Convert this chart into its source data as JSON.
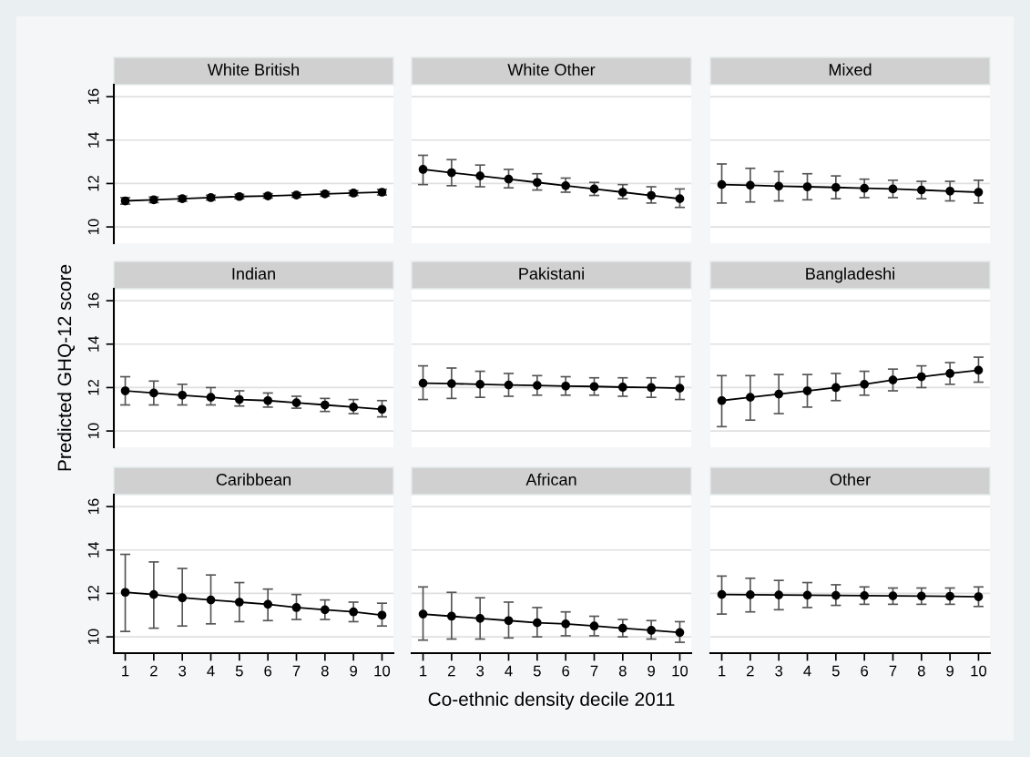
{
  "chart_data": [
    {
      "type": "line",
      "title": "White British",
      "x": [
        1,
        2,
        3,
        4,
        5,
        6,
        7,
        8,
        9,
        10
      ],
      "xlim": [
        0.6,
        10.4
      ],
      "xticks": [
        1,
        2,
        3,
        4,
        5,
        6,
        7,
        8,
        9,
        10
      ],
      "ylim": [
        9.25,
        16.55
      ],
      "yticks": [
        10,
        12,
        14,
        16
      ],
      "grid": "y",
      "marker": "circle",
      "tick_labels": "y",
      "series": [
        {
          "color": "#000000",
          "values": [
            11.2,
            11.25,
            11.3,
            11.35,
            11.4,
            11.43,
            11.47,
            11.52,
            11.56,
            11.6
          ],
          "errors": [
            [
              11.05,
              11.35
            ],
            [
              11.12,
              11.38
            ],
            [
              11.18,
              11.42
            ],
            [
              11.24,
              11.46
            ],
            [
              11.3,
              11.5
            ],
            [
              11.33,
              11.53
            ],
            [
              11.37,
              11.57
            ],
            [
              11.42,
              11.62
            ],
            [
              11.45,
              11.67
            ],
            [
              11.47,
              11.73
            ]
          ]
        }
      ]
    },
    {
      "type": "line",
      "title": "White Other",
      "x": [
        1,
        2,
        3,
        4,
        5,
        6,
        7,
        8,
        9,
        10
      ],
      "xlim": [
        0.6,
        10.4
      ],
      "xticks": [
        1,
        2,
        3,
        4,
        5,
        6,
        7,
        8,
        9,
        10
      ],
      "ylim": [
        9.25,
        16.55
      ],
      "yticks": [
        10,
        12,
        14,
        16
      ],
      "grid": "y",
      "marker": "circle",
      "tick_labels": false,
      "series": [
        {
          "color": "#000000",
          "values": [
            12.65,
            12.5,
            12.35,
            12.2,
            12.05,
            11.9,
            11.75,
            11.6,
            11.45,
            11.3
          ],
          "errors": [
            [
              11.95,
              13.3
            ],
            [
              11.9,
              13.1
            ],
            [
              11.85,
              12.85
            ],
            [
              11.8,
              12.65
            ],
            [
              11.7,
              12.45
            ],
            [
              11.6,
              12.25
            ],
            [
              11.45,
              12.05
            ],
            [
              11.3,
              11.95
            ],
            [
              11.1,
              11.85
            ],
            [
              10.9,
              11.75
            ]
          ]
        }
      ]
    },
    {
      "type": "line",
      "title": "Mixed",
      "x": [
        1,
        2,
        3,
        4,
        5,
        6,
        7,
        8,
        9,
        10
      ],
      "xlim": [
        0.6,
        10.4
      ],
      "xticks": [
        1,
        2,
        3,
        4,
        5,
        6,
        7,
        8,
        9,
        10
      ],
      "ylim": [
        9.25,
        16.55
      ],
      "yticks": [
        10,
        12,
        14,
        16
      ],
      "grid": "y",
      "marker": "circle",
      "tick_labels": false,
      "series": [
        {
          "color": "#000000",
          "values": [
            11.95,
            11.92,
            11.88,
            11.85,
            11.82,
            11.78,
            11.75,
            11.7,
            11.65,
            11.6
          ],
          "errors": [
            [
              11.1,
              12.9
            ],
            [
              11.15,
              12.7
            ],
            [
              11.2,
              12.55
            ],
            [
              11.25,
              12.45
            ],
            [
              11.3,
              12.35
            ],
            [
              11.35,
              12.2
            ],
            [
              11.35,
              12.15
            ],
            [
              11.3,
              12.1
            ],
            [
              11.2,
              12.1
            ],
            [
              11.1,
              12.15
            ]
          ]
        }
      ]
    },
    {
      "type": "line",
      "title": "Indian",
      "ylabel": "Predicted GHQ-12 score",
      "x": [
        1,
        2,
        3,
        4,
        5,
        6,
        7,
        8,
        9,
        10
      ],
      "xlim": [
        0.6,
        10.4
      ],
      "xticks": [
        1,
        2,
        3,
        4,
        5,
        6,
        7,
        8,
        9,
        10
      ],
      "ylim": [
        9.25,
        16.55
      ],
      "yticks": [
        10,
        12,
        14,
        16
      ],
      "grid": "y",
      "marker": "circle",
      "tick_labels": "y",
      "series": [
        {
          "color": "#000000",
          "values": [
            11.85,
            11.75,
            11.65,
            11.55,
            11.45,
            11.4,
            11.3,
            11.2,
            11.1,
            11.0
          ],
          "errors": [
            [
              11.2,
              12.5
            ],
            [
              11.2,
              12.3
            ],
            [
              11.2,
              12.15
            ],
            [
              11.2,
              12.0
            ],
            [
              11.15,
              11.85
            ],
            [
              11.1,
              11.75
            ],
            [
              11.05,
              11.6
            ],
            [
              10.9,
              11.5
            ],
            [
              10.8,
              11.45
            ],
            [
              10.65,
              11.4
            ]
          ]
        }
      ]
    },
    {
      "type": "line",
      "title": "Pakistani",
      "x": [
        1,
        2,
        3,
        4,
        5,
        6,
        7,
        8,
        9,
        10
      ],
      "xlim": [
        0.6,
        10.4
      ],
      "xticks": [
        1,
        2,
        3,
        4,
        5,
        6,
        7,
        8,
        9,
        10
      ],
      "ylim": [
        9.25,
        16.55
      ],
      "yticks": [
        10,
        12,
        14,
        16
      ],
      "grid": "y",
      "marker": "circle",
      "tick_labels": false,
      "series": [
        {
          "color": "#000000",
          "values": [
            12.2,
            12.18,
            12.15,
            12.12,
            12.1,
            12.07,
            12.05,
            12.02,
            12.0,
            11.97
          ],
          "errors": [
            [
              11.45,
              13.0
            ],
            [
              11.5,
              12.9
            ],
            [
              11.55,
              12.75
            ],
            [
              11.6,
              12.65
            ],
            [
              11.65,
              12.55
            ],
            [
              11.65,
              12.5
            ],
            [
              11.65,
              12.45
            ],
            [
              11.6,
              12.45
            ],
            [
              11.55,
              12.45
            ],
            [
              11.45,
              12.5
            ]
          ]
        }
      ]
    },
    {
      "type": "line",
      "title": "Bangladeshi",
      "x": [
        1,
        2,
        3,
        4,
        5,
        6,
        7,
        8,
        9,
        10
      ],
      "xlim": [
        0.6,
        10.4
      ],
      "xticks": [
        1,
        2,
        3,
        4,
        5,
        6,
        7,
        8,
        9,
        10
      ],
      "ylim": [
        9.25,
        16.55
      ],
      "yticks": [
        10,
        12,
        14,
        16
      ],
      "grid": "y",
      "marker": "circle",
      "tick_labels": false,
      "series": [
        {
          "color": "#000000",
          "values": [
            11.4,
            11.55,
            11.7,
            11.85,
            12.0,
            12.15,
            12.35,
            12.5,
            12.65,
            12.8
          ],
          "errors": [
            [
              10.2,
              12.55
            ],
            [
              10.5,
              12.55
            ],
            [
              10.8,
              12.6
            ],
            [
              11.1,
              12.6
            ],
            [
              11.4,
              12.65
            ],
            [
              11.65,
              12.75
            ],
            [
              11.85,
              12.85
            ],
            [
              12.0,
              13.0
            ],
            [
              12.15,
              13.15
            ],
            [
              12.25,
              13.4
            ]
          ]
        }
      ]
    },
    {
      "type": "line",
      "title": "Caribbean",
      "x": [
        1,
        2,
        3,
        4,
        5,
        6,
        7,
        8,
        9,
        10
      ],
      "xlim": [
        0.6,
        10.4
      ],
      "xticks": [
        1,
        2,
        3,
        4,
        5,
        6,
        7,
        8,
        9,
        10
      ],
      "ylim": [
        9.25,
        16.55
      ],
      "yticks": [
        10,
        12,
        14,
        16
      ],
      "grid": "y",
      "marker": "circle",
      "series": [
        {
          "color": "#000000",
          "values": [
            12.05,
            11.95,
            11.8,
            11.7,
            11.6,
            11.5,
            11.35,
            11.25,
            11.15,
            11.0
          ],
          "errors": [
            [
              10.25,
              13.8
            ],
            [
              10.4,
              13.45
            ],
            [
              10.5,
              13.15
            ],
            [
              10.6,
              12.85
            ],
            [
              10.7,
              12.5
            ],
            [
              10.75,
              12.2
            ],
            [
              10.8,
              11.95
            ],
            [
              10.8,
              11.7
            ],
            [
              10.7,
              11.6
            ],
            [
              10.5,
              11.55
            ]
          ]
        }
      ]
    },
    {
      "type": "line",
      "title": "African",
      "xlabel": "Co-ethnic density decile 2011",
      "x": [
        1,
        2,
        3,
        4,
        5,
        6,
        7,
        8,
        9,
        10
      ],
      "xlim": [
        0.6,
        10.4
      ],
      "xticks": [
        1,
        2,
        3,
        4,
        5,
        6,
        7,
        8,
        9,
        10
      ],
      "ylim": [
        9.25,
        16.55
      ],
      "yticks": [
        10,
        12,
        14,
        16
      ],
      "grid": "y",
      "marker": "circle",
      "tick_labels": "x",
      "series": [
        {
          "color": "#000000",
          "values": [
            11.05,
            10.95,
            10.85,
            10.75,
            10.65,
            10.6,
            10.5,
            10.4,
            10.3,
            10.2
          ],
          "errors": [
            [
              9.85,
              12.3
            ],
            [
              9.9,
              12.05
            ],
            [
              9.9,
              11.8
            ],
            [
              9.95,
              11.6
            ],
            [
              10.0,
              11.35
            ],
            [
              10.05,
              11.15
            ],
            [
              10.05,
              10.95
            ],
            [
              10.0,
              10.8
            ],
            [
              9.9,
              10.75
            ],
            [
              9.75,
              10.7
            ]
          ]
        }
      ]
    },
    {
      "type": "line",
      "title": "Other",
      "x": [
        1,
        2,
        3,
        4,
        5,
        6,
        7,
        8,
        9,
        10
      ],
      "xlim": [
        0.6,
        10.4
      ],
      "xticks": [
        1,
        2,
        3,
        4,
        5,
        6,
        7,
        8,
        9,
        10
      ],
      "ylim": [
        9.25,
        16.55
      ],
      "yticks": [
        10,
        12,
        14,
        16
      ],
      "grid": "y",
      "marker": "circle",
      "tick_labels": "x",
      "series": [
        {
          "color": "#000000",
          "values": [
            11.95,
            11.94,
            11.93,
            11.92,
            11.91,
            11.9,
            11.89,
            11.88,
            11.87,
            11.85
          ],
          "errors": [
            [
              11.05,
              12.8
            ],
            [
              11.15,
              12.7
            ],
            [
              11.25,
              12.6
            ],
            [
              11.35,
              12.5
            ],
            [
              11.45,
              12.4
            ],
            [
              11.5,
              12.3
            ],
            [
              11.5,
              12.25
            ],
            [
              11.5,
              12.25
            ],
            [
              11.5,
              12.25
            ],
            [
              11.4,
              12.3
            ]
          ]
        }
      ]
    }
  ]
}
